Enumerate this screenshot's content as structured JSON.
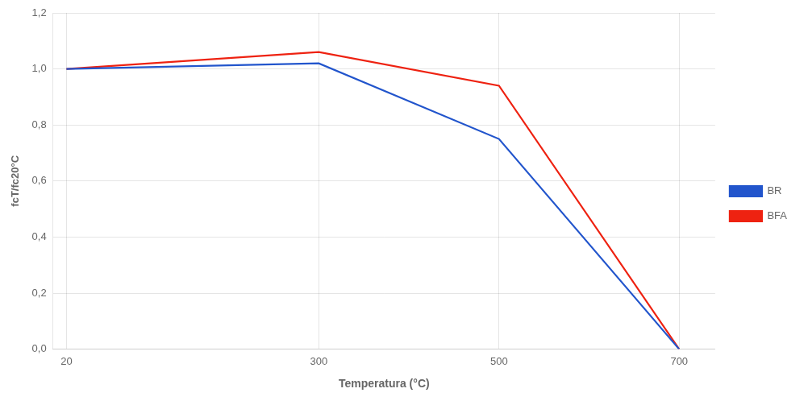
{
  "chart_data": {
    "type": "line",
    "x": [
      20,
      300,
      500,
      700
    ],
    "series": [
      {
        "name": "BR",
        "color": "#2255cc",
        "values": [
          1.0,
          1.02,
          0.75,
          0.0
        ]
      },
      {
        "name": "BFA",
        "color": "#ee2211",
        "values": [
          1.0,
          1.06,
          0.94,
          0.0
        ]
      }
    ],
    "x_label": "Temperatura (°C)",
    "y_label": "fcT/fc20°C",
    "xlim": [
      5,
      740
    ],
    "ylim": [
      0.0,
      1.2
    ],
    "xticks": [
      20,
      300,
      500,
      700
    ],
    "yticks": [
      {
        "value": 0.0,
        "label": "0,0"
      },
      {
        "value": 0.2,
        "label": "0,2"
      },
      {
        "value": 0.4,
        "label": "0,4"
      },
      {
        "value": 0.6,
        "label": "0,6"
      },
      {
        "value": 0.8,
        "label": "0,8"
      },
      {
        "value": 1.0,
        "label": "1,0"
      },
      {
        "value": 1.2,
        "label": "1,2"
      }
    ],
    "grid": true,
    "legend": "right"
  }
}
